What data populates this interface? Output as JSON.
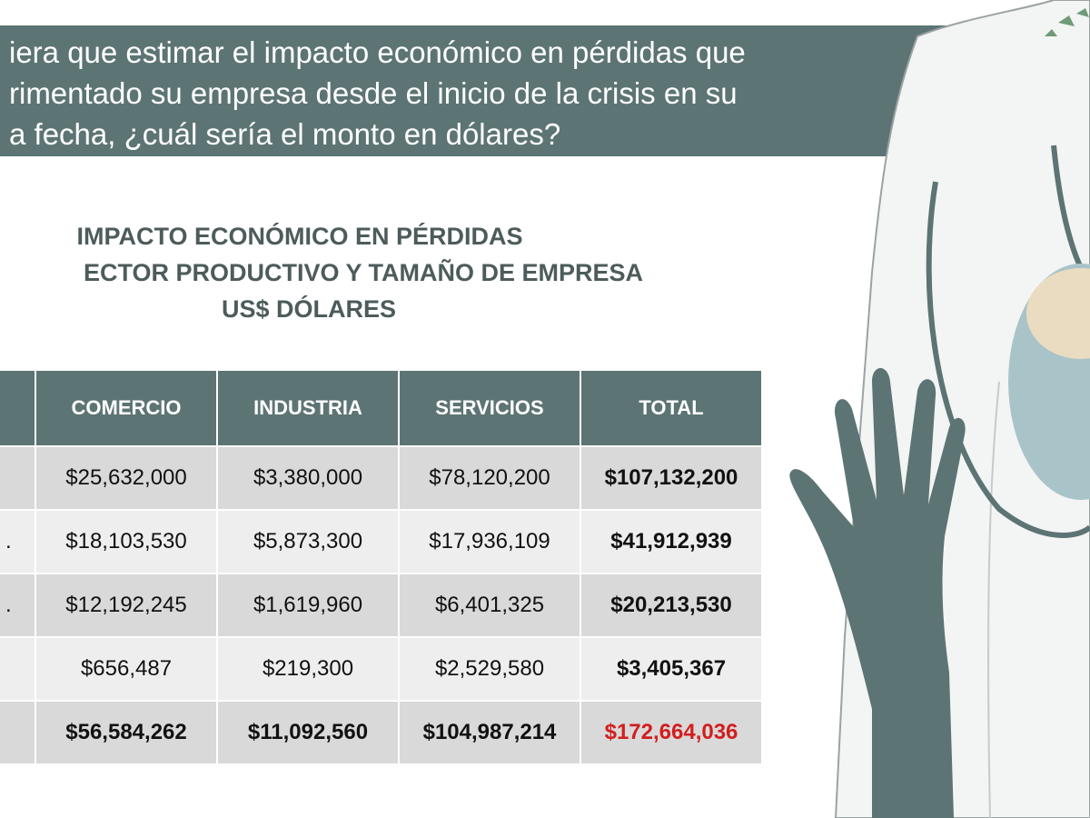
{
  "question": {
    "lines": [
      "iera que estimar el impacto económico en pérdidas  que",
      "rimentado su empresa desde el inicio de la crisis en su",
      "a fecha, ¿cuál sería el monto en dólares?"
    ]
  },
  "chart_data": {
    "type": "table",
    "title_lines": [
      "IMPACTO ECONÓMICO EN PÉRDIDAS",
      "ECTOR PRODUCTIVO Y TAMAÑO DE EMPRESA",
      "US$ DÓLARES"
    ],
    "columns": [
      "COMERCIO",
      "INDUSTRIA",
      "SERVICIOS",
      "TOTAL"
    ],
    "rows": [
      {
        "stub": "",
        "values": [
          "$25,632,000",
          "$3,380,000",
          "$78,120,200",
          "$107,132,200"
        ]
      },
      {
        "stub": ".",
        "values": [
          "$18,103,530",
          "$5,873,300",
          "$17,936,109",
          "$41,912,939"
        ]
      },
      {
        "stub": ".",
        "values": [
          "$12,192,245",
          "$1,619,960",
          "$6,401,325",
          "$20,213,530"
        ]
      },
      {
        "stub": "",
        "values": [
          "$656,487",
          "$219,300",
          "$2,529,580",
          "$3,405,367"
        ]
      },
      {
        "stub": "",
        "values": [
          "$56,584,262",
          "$11,092,560",
          "$104,987,214",
          "$172,664,036"
        ]
      }
    ],
    "colors": {
      "header_bg": "#5d7474",
      "row_dark": "#d9d9d9",
      "row_light": "#eeeeee",
      "grand_total": "#d21e1e"
    }
  },
  "illustration": {
    "icon": "doctor-with-mask-and-glove-icon"
  }
}
